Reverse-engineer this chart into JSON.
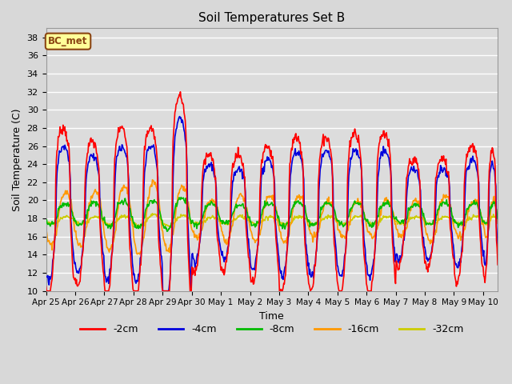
{
  "title": "Soil Temperatures Set B",
  "xlabel": "Time",
  "ylabel": "Soil Temperature (C)",
  "ylim": [
    10,
    39
  ],
  "yticks": [
    10,
    12,
    14,
    16,
    18,
    20,
    22,
    24,
    26,
    28,
    30,
    32,
    34,
    36,
    38
  ],
  "background_color": "#d8d8d8",
  "plot_bg_color": "#dcdcdc",
  "colors": {
    "-2cm": "#ff0000",
    "-4cm": "#0000dd",
    "-8cm": "#00bb00",
    "-16cm": "#ff9900",
    "-32cm": "#cccc00"
  },
  "annotation_text": "BC_met",
  "annotation_bg": "#ffff99",
  "annotation_border": "#8B4513",
  "date_labels": [
    "Apr 25",
    "Apr 26",
    "Apr 27",
    "Apr 28",
    "Apr 29",
    "Apr 30",
    "May 1",
    "May 2",
    "May 3",
    "May 4",
    "May 5",
    "May 6",
    "May 7",
    "May 8",
    "May 9",
    "May 10"
  ],
  "legend_labels": [
    "-2cm",
    "-4cm",
    "-8cm",
    "-16cm",
    "-32cm"
  ],
  "figsize": [
    6.4,
    4.8
  ],
  "dpi": 100
}
